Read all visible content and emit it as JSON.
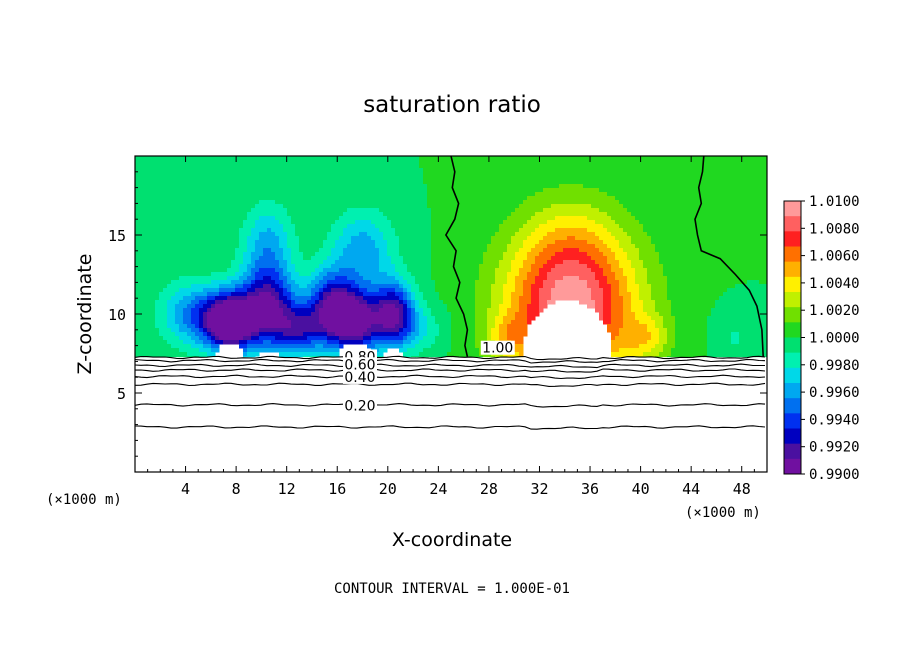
{
  "chart_data": {
    "type": "heatmap",
    "title": "saturation ratio",
    "xlabel": "X-coordinate",
    "ylabel": "Z-coordinate",
    "x_unit": "(×1000 m)",
    "footer": "CONTOUR INTERVAL = 1.000E-01",
    "xlim": [
      0,
      50
    ],
    "ylim": [
      0,
      20
    ],
    "x_ticks": [
      4,
      8,
      12,
      16,
      20,
      24,
      28,
      32,
      36,
      40,
      44,
      48
    ],
    "x_tick_labels": [
      "4",
      "8",
      "12",
      "16",
      "20",
      "24",
      "28",
      "32",
      "36",
      "40",
      "44",
      "48"
    ],
    "y_ticks": [
      5,
      10,
      15
    ],
    "y_tick_labels": [
      "5",
      "10",
      "15"
    ],
    "fill_region_ymin": 7.3,
    "colorbar": {
      "levels": [
        "1.0100",
        "1.0080",
        "1.0060",
        "1.0040",
        "1.0020",
        "1.0000",
        "0.9980",
        "0.9960",
        "0.9940",
        "0.9920",
        "0.9900"
      ],
      "colors": [
        "#ff9a9a",
        "#ff6060",
        "#ff2020",
        "#ff7000",
        "#ffb000",
        "#fff000",
        "#c0f000",
        "#70e000",
        "#20d820",
        "#00e070",
        "#00f0b0",
        "#00d8e8",
        "#00a8f0",
        "#0070f0",
        "#0030f0",
        "#0000c0",
        "#4a10a0",
        "#7010a0"
      ]
    },
    "contour_labels": [
      "1.00",
      "0.80",
      "0.60",
      "0.40",
      "0.20"
    ],
    "contours": [
      {
        "level": 1.0,
        "points": [
          [
            25.0,
            20
          ],
          [
            25.3,
            19
          ],
          [
            25.1,
            18
          ],
          [
            25.6,
            17
          ],
          [
            25.3,
            16
          ],
          [
            24.6,
            15
          ],
          [
            25.4,
            14
          ],
          [
            25.2,
            13
          ],
          [
            25.7,
            12
          ],
          [
            25.4,
            11
          ],
          [
            26.0,
            10
          ],
          [
            26.3,
            9
          ],
          [
            26.1,
            8
          ],
          [
            26.3,
            7.3
          ]
        ]
      },
      {
        "level": 1.0,
        "points": [
          [
            45.0,
            20
          ],
          [
            44.9,
            19
          ],
          [
            44.6,
            18
          ],
          [
            44.8,
            17
          ],
          [
            44.3,
            16
          ],
          [
            44.5,
            15
          ],
          [
            44.8,
            14
          ],
          [
            46.3,
            13.5
          ],
          [
            47.5,
            12.5
          ],
          [
            48.6,
            11.5
          ],
          [
            49.2,
            10.5
          ],
          [
            49.6,
            9
          ],
          [
            49.7,
            7.3
          ]
        ]
      }
    ],
    "field": {
      "background": 1.0,
      "anomalies": [
        {
          "x": 4.5,
          "z": 10.0,
          "sx": 2.5,
          "sz": 2.0,
          "amp": -0.0045
        },
        {
          "x": 7.5,
          "z": 9.5,
          "sx": 2.0,
          "sz": 1.8,
          "amp": -0.012
        },
        {
          "x": 10.5,
          "z": 10.5,
          "sx": 2.2,
          "sz": 2.5,
          "amp": -0.0085
        },
        {
          "x": 10.5,
          "z": 14.5,
          "sx": 2.0,
          "sz": 2.5,
          "amp": -0.0035
        },
        {
          "x": 13.0,
          "z": 9.0,
          "sx": 2.0,
          "sz": 1.6,
          "amp": -0.006
        },
        {
          "x": 15.5,
          "z": 10.5,
          "sx": 1.8,
          "sz": 2.2,
          "amp": -0.0075
        },
        {
          "x": 17.5,
          "z": 9.5,
          "sx": 2.0,
          "sz": 2.0,
          "amp": -0.0095
        },
        {
          "x": 18.0,
          "z": 14.0,
          "sx": 2.5,
          "sz": 2.5,
          "amp": -0.004
        },
        {
          "x": 20.5,
          "z": 10.0,
          "sx": 1.6,
          "sz": 2.0,
          "amp": -0.0085
        },
        {
          "x": 22.5,
          "z": 9.0,
          "sx": 2.0,
          "sz": 1.5,
          "amp": -0.002
        },
        {
          "x": 34.5,
          "z": 10.5,
          "sx": 5.2,
          "sz": 4.6,
          "amp": 0.0098
        },
        {
          "x": 29.5,
          "z": 8.5,
          "sx": 1.6,
          "sz": 1.4,
          "amp": 0.0025
        },
        {
          "x": 34.5,
          "z": 15.0,
          "sx": 4.0,
          "sz": 3.0,
          "amp": 0.0015
        },
        {
          "x": 40.5,
          "z": 8.5,
          "sx": 1.8,
          "sz": 1.4,
          "amp": 0.0025
        },
        {
          "x": 47.5,
          "z": 8.5,
          "sx": 1.6,
          "sz": 1.6,
          "amp": -0.0012
        }
      ],
      "holes": [
        {
          "x": 7.5,
          "z": 7.3,
          "sx": 1.1,
          "sz": 0.9
        },
        {
          "x": 10.5,
          "z": 7.3,
          "sx": 0.9,
          "sz": 0.3
        },
        {
          "x": 17.5,
          "z": 7.3,
          "sx": 1.4,
          "sz": 0.9
        },
        {
          "x": 20.5,
          "z": 7.3,
          "sx": 0.8,
          "sz": 0.5
        },
        {
          "x": 34.2,
          "z": 7.3,
          "sx": 3.6,
          "sz": 3.6
        }
      ]
    },
    "lower_contour_levels": [
      {
        "label": "0.80",
        "z": 7.25
      },
      {
        "label": "",
        "z": 7.05
      },
      {
        "label": "0.60",
        "z": 6.75
      },
      {
        "label": "",
        "z": 6.45
      },
      {
        "label": "0.40",
        "z": 6.05
      },
      {
        "label": "",
        "z": 5.55
      },
      {
        "label": "0.20",
        "z": 4.25
      },
      {
        "label": "",
        "z": 2.85
      }
    ]
  }
}
